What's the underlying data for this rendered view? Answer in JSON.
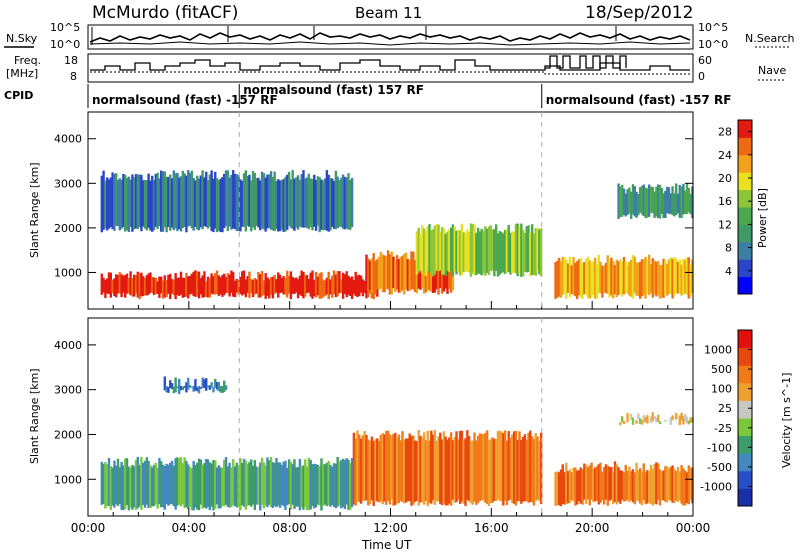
{
  "header": {
    "station": "McMurdo (fitACF)",
    "beam": "Beam 11",
    "date": "18/Sep/2012"
  },
  "noise_panel": {
    "left_label": "N.Sky",
    "right_label": "N.Search",
    "left_ticks": [
      "10^5",
      "10^0"
    ],
    "right_ticks": [
      "10^5",
      "10^0"
    ]
  },
  "freq_panel": {
    "left_label_1": "Freq.",
    "left_label_2": "[MHz]",
    "left_ticks": [
      "18",
      "8"
    ],
    "right_label": "Nave",
    "right_ticks": [
      "60",
      "0"
    ]
  },
  "cpid": {
    "label": "CPID",
    "segments": [
      {
        "text": "normalsound (fast) -157 RF",
        "start_h": 0,
        "end_h": 6
      },
      {
        "text": "normalsound (fast) 157 RF",
        "start_h": 6,
        "end_h": 18
      },
      {
        "text": "normalsound (fast) -157 RF",
        "start_h": 18,
        "end_h": 24
      }
    ]
  },
  "chart_data": [
    {
      "type": "heatmap",
      "name": "power",
      "ylabel": "Slant Range [km]",
      "ylim": [
        180,
        4600
      ],
      "yticks": [
        1000,
        2000,
        3000,
        4000
      ],
      "xlim": [
        0,
        24
      ],
      "colorbar": {
        "label": "Power [dB]",
        "ticks": [
          "28",
          "24",
          "20",
          "16",
          "12",
          "8",
          "4"
        ],
        "range": [
          0,
          30
        ],
        "colors": [
          "#0000ff",
          "#2b45c8",
          "#3d7fa4",
          "#3f9a66",
          "#4ca84c",
          "#8cc43a",
          "#e8e020",
          "#f2a21a",
          "#ee6a12",
          "#e21a10"
        ]
      },
      "bands": [
        {
          "start_h": 0.5,
          "end_h": 11.5,
          "min_km": 400,
          "max_km": 1050,
          "value_level": 9
        },
        {
          "start_h": 11.0,
          "end_h": 14.5,
          "min_km": 500,
          "max_km": 1500,
          "value_level": 8
        },
        {
          "start_h": 13.0,
          "end_h": 18.0,
          "min_km": 900,
          "max_km": 2100,
          "value_level": 5
        },
        {
          "start_h": 18.5,
          "end_h": 24.0,
          "min_km": 400,
          "max_km": 1400,
          "value_level": 7
        },
        {
          "start_h": 0.5,
          "end_h": 10.5,
          "min_km": 1900,
          "max_km": 3300,
          "value_level": 2
        },
        {
          "start_h": 21.0,
          "end_h": 24.0,
          "min_km": 2200,
          "max_km": 3000,
          "value_level": 3
        }
      ]
    },
    {
      "type": "heatmap",
      "name": "velocity",
      "ylabel": "Slant Range [km]",
      "xlabel": "Time UT",
      "ylim": [
        180,
        4600
      ],
      "yticks": [
        1000,
        2000,
        3000,
        4000
      ],
      "xlim": [
        0,
        24
      ],
      "xticks": [
        "00:00",
        "04:00",
        "08:00",
        "12:00",
        "16:00",
        "20:00",
        "00:00"
      ],
      "colorbar": {
        "label": "Velocity [m s^-1]",
        "ticks": [
          "1000",
          "500",
          "100",
          "25",
          "-25",
          "-100",
          "-500",
          "-1000"
        ],
        "colors": [
          "#1a2ea8",
          "#2750c8",
          "#4488c0",
          "#3c9c6a",
          "#7cc83c",
          "#c8c8c0",
          "#f0a030",
          "#f07a18",
          "#e84810",
          "#e01010"
        ]
      },
      "bands": [
        {
          "start_h": 0.5,
          "end_h": 10.5,
          "min_km": 300,
          "max_km": 1500,
          "value_level": 3
        },
        {
          "start_h": 10.5,
          "end_h": 18.0,
          "min_km": 400,
          "max_km": 2100,
          "value_level": 7
        },
        {
          "start_h": 18.5,
          "end_h": 24.0,
          "min_km": 400,
          "max_km": 1400,
          "value_level": 7
        },
        {
          "start_h": 21.0,
          "end_h": 24.0,
          "min_km": 2200,
          "max_km": 2500,
          "value_level": 5
        },
        {
          "start_h": 3.0,
          "end_h": 5.5,
          "min_km": 2900,
          "max_km": 3300,
          "value_level": 2
        }
      ]
    }
  ]
}
